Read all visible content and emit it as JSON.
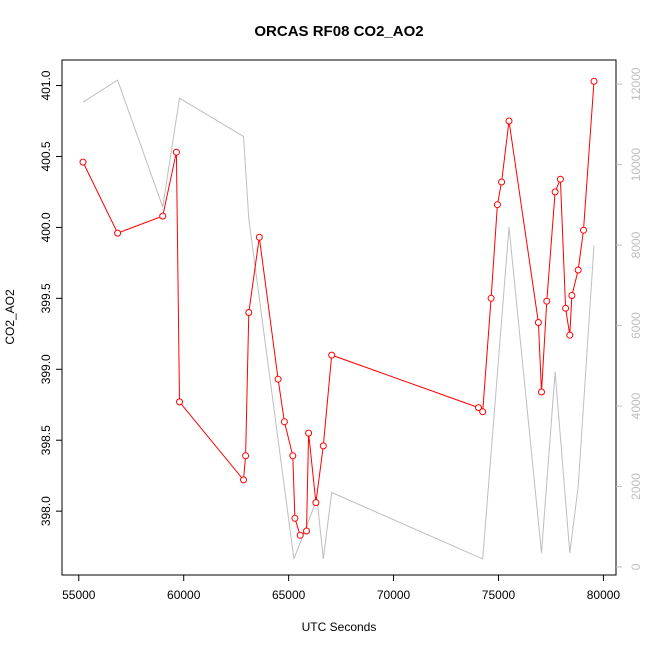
{
  "chart_data": {
    "type": "line",
    "title": "ORCAS RF08 CO2_AO2",
    "xlabel": "UTC Seconds",
    "ylabel": "CO2_AO2",
    "y2label": "",
    "xlim": [
      54200,
      80600
    ],
    "ylim": [
      397.55,
      401.18
    ],
    "y2lim": [
      -200,
      12600
    ],
    "x_ticks": [
      55000,
      60000,
      65000,
      70000,
      75000,
      80000
    ],
    "x_tick_labels": [
      "55000",
      "60000",
      "65000",
      "70000",
      "75000",
      "80000"
    ],
    "y_ticks": [
      398.0,
      398.5,
      399.0,
      399.5,
      400.0,
      400.5,
      401.0
    ],
    "y_tick_labels": [
      "398.0",
      "398.5",
      "399.0",
      "399.5",
      "400.0",
      "400.5",
      "401.0"
    ],
    "y2_ticks": [
      0,
      2000,
      4000,
      6000,
      8000,
      10000,
      12000
    ],
    "y2_tick_labels": [
      "0",
      "2000",
      "4000",
      "6000",
      "8000",
      "10000",
      "12000"
    ],
    "grid": false,
    "legend": "none",
    "series": [
      {
        "axis": "left",
        "color": "#ff0000",
        "marker": "open-circle",
        "x": [
          55200,
          56850,
          59000,
          59650,
          59800,
          62850,
          62950,
          63100,
          63600,
          64500,
          64800,
          65200,
          65300,
          65550,
          65850,
          65950,
          66300,
          66650,
          67050,
          74050,
          74250,
          74650,
          74950,
          75150,
          75500,
          76900,
          77050,
          77300,
          77700,
          77950,
          78200,
          78400,
          78500,
          78800,
          79050,
          79550
        ],
        "y": [
          400.46,
          399.96,
          400.08,
          400.53,
          398.77,
          398.22,
          398.39,
          399.4,
          399.93,
          398.93,
          398.63,
          398.39,
          397.95,
          397.83,
          397.86,
          398.55,
          398.06,
          398.46,
          399.1,
          398.73,
          398.7,
          399.5,
          400.16,
          400.32,
          400.75,
          399.33,
          398.84,
          399.48,
          400.25,
          400.34,
          399.43,
          399.24,
          399.52,
          399.7,
          399.98,
          401.03
        ]
      },
      {
        "axis": "right",
        "color": "#bebebe",
        "marker": "none",
        "x": [
          55200,
          56850,
          59000,
          59800,
          62850,
          63100,
          65250,
          65550,
          66350,
          66650,
          67050,
          74250,
          75500,
          77050,
          77700,
          78400,
          78800,
          79550
        ],
        "y": [
          11550,
          12100,
          8950,
          11650,
          10700,
          8650,
          200,
          600,
          1700,
          200,
          1850,
          200,
          8450,
          350,
          4850,
          350,
          2000,
          8000
        ]
      }
    ]
  }
}
